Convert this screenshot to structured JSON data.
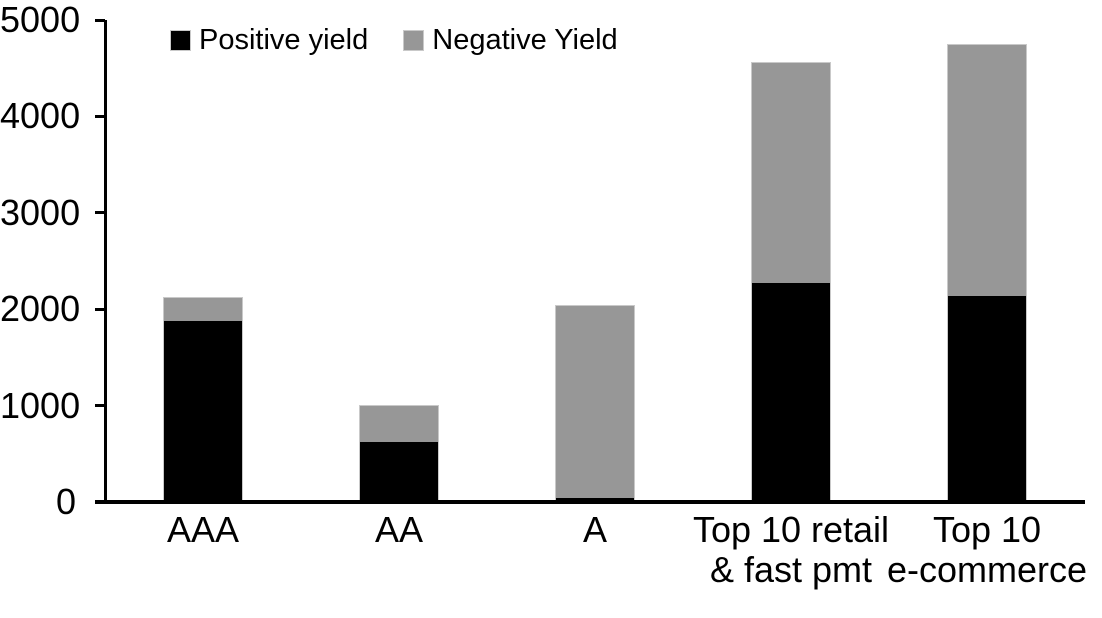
{
  "chart_data": {
    "type": "bar",
    "stacked": true,
    "title": "",
    "xlabel": "",
    "ylabel": "",
    "categories": [
      "AAA",
      "AA",
      "A",
      "Top 10 retail\n& fast pmt",
      "Top 10\ne-commerce"
    ],
    "series": [
      {
        "name": "Positive yield",
        "color": "#000000",
        "values": [
          1880,
          620,
          40,
          2270,
          2140
        ]
      },
      {
        "name": "Negative Yield",
        "color": "#979797",
        "values": [
          240,
          380,
          1990,
          2280,
          2600
        ]
      }
    ],
    "stack_totals": [
      2120,
      1000,
      2030,
      4550,
      4740
    ],
    "ylim": [
      0,
      5000
    ],
    "yticks": [
      0,
      1000,
      2000,
      3000,
      4000,
      5000
    ],
    "grid": false,
    "legend_position": "top-left-inside",
    "axis_color": "#000000"
  }
}
